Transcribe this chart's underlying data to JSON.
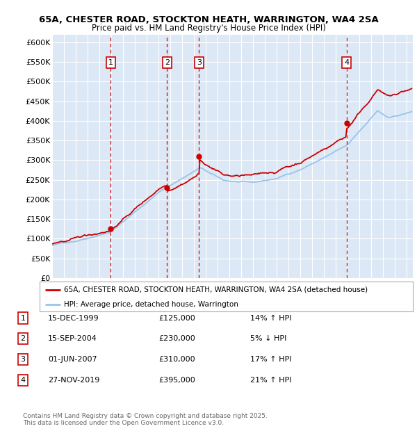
{
  "title1": "65A, CHESTER ROAD, STOCKTON HEATH, WARRINGTON, WA4 2SA",
  "title2": "Price paid vs. HM Land Registry's House Price Index (HPI)",
  "ylabel_ticks": [
    "£0",
    "£50K",
    "£100K",
    "£150K",
    "£200K",
    "£250K",
    "£300K",
    "£350K",
    "£400K",
    "£450K",
    "£500K",
    "£550K",
    "£600K"
  ],
  "ytick_values": [
    0,
    50000,
    100000,
    150000,
    200000,
    250000,
    300000,
    350000,
    400000,
    450000,
    500000,
    550000,
    600000
  ],
  "ylim": [
    0,
    620000
  ],
  "xlim_start": 1995.0,
  "xlim_end": 2025.5,
  "background_color": "#dce8f5",
  "grid_color": "#ffffff",
  "sale_markers": [
    {
      "num": 1,
      "year": 1999.96,
      "price": 125000,
      "date": "15-DEC-1999",
      "pct": "14%",
      "dir": "↑"
    },
    {
      "num": 2,
      "year": 2004.71,
      "price": 230000,
      "date": "15-SEP-2004",
      "pct": "5%",
      "dir": "↓"
    },
    {
      "num": 3,
      "year": 2007.42,
      "price": 310000,
      "date": "01-JUN-2007",
      "pct": "17%",
      "dir": "↑"
    },
    {
      "num": 4,
      "year": 2019.9,
      "price": 395000,
      "date": "27-NOV-2019",
      "pct": "21%",
      "dir": "↑"
    }
  ],
  "legend_line1": "65A, CHESTER ROAD, STOCKTON HEATH, WARRINGTON, WA4 2SA (detached house)",
  "legend_line2": "HPI: Average price, detached house, Warrington",
  "footer1": "Contains HM Land Registry data © Crown copyright and database right 2025.",
  "footer2": "This data is licensed under the Open Government Licence v3.0.",
  "sale_color": "#cc0000",
  "hpi_color": "#99c4e8",
  "dashed_line_color": "#cc0000",
  "table_rows": [
    {
      "num": 1,
      "date": "15-DEC-1999",
      "price": "£125,000",
      "pct": "14% ↑ HPI"
    },
    {
      "num": 2,
      "date": "15-SEP-2004",
      "price": "£230,000",
      "pct": "5% ↓ HPI"
    },
    {
      "num": 3,
      "date": "01-JUN-2007",
      "price": "£310,000",
      "pct": "17% ↑ HPI"
    },
    {
      "num": 4,
      "date": "27-NOV-2019",
      "price": "£395,000",
      "pct": "21% ↑ HPI"
    }
  ]
}
